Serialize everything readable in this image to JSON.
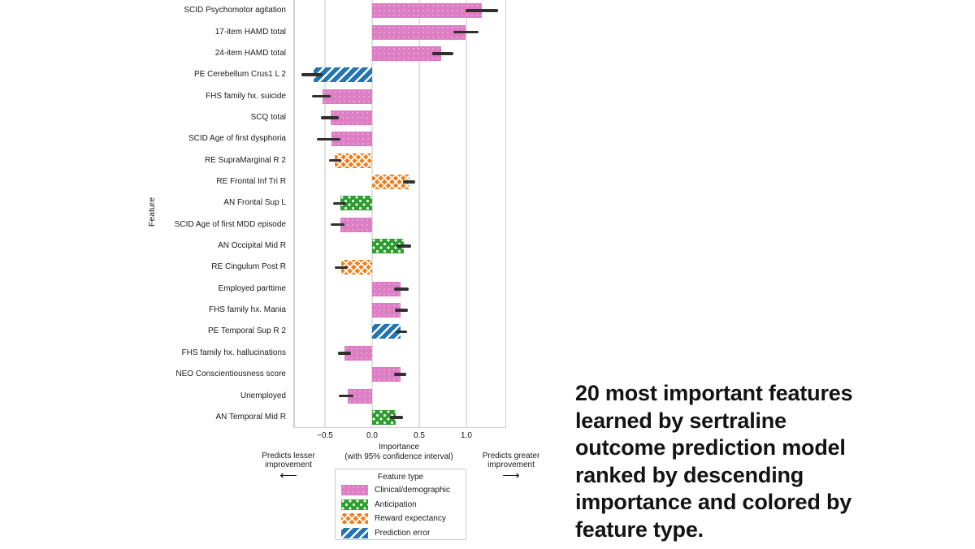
{
  "caption": {
    "lines": [
      "20 most important features",
      "learned by sertraline",
      "outcome prediction model",
      "ranked by descending",
      "importance and colored by",
      "feature type."
    ]
  },
  "chart_data": {
    "type": "bar",
    "orientation": "horizontal",
    "ylabel": "Feature",
    "xlabel_lines": [
      "Importance",
      "(with 95% confidence interval)"
    ],
    "xlim": [
      -0.84,
      1.42
    ],
    "grid": true,
    "x_ticks": [
      {
        "label": "−0.5",
        "value": -0.5
      },
      {
        "label": "0.0",
        "value": 0.0
      },
      {
        "label": "0.5",
        "value": 0.5
      },
      {
        "label": "1.0",
        "value": 1.0
      }
    ],
    "annotations": {
      "left": {
        "lines": [
          "Predicts lesser",
          "improvement"
        ],
        "arrow": "⟵"
      },
      "right": {
        "lines": [
          "Predicts greater",
          "improvement"
        ],
        "arrow": "⟶"
      }
    },
    "legend": {
      "title": "Feature type",
      "position": "below-axis",
      "items": [
        {
          "key": "clinical",
          "label": "Clinical/demographic",
          "color": "#dd7dc3",
          "hatch": "fine-dots"
        },
        {
          "key": "anticipation",
          "label": "Anticipation",
          "color": "#2e9e2e",
          "hatch": "white-dots"
        },
        {
          "key": "reward",
          "label": "Reward expectancy",
          "color": "#f07f1c",
          "hatch": "crosshatch"
        },
        {
          "key": "prediction",
          "label": "Prediction error",
          "color": "#2474b0",
          "hatch": "diagonal-stripes"
        }
      ]
    },
    "errorbar_color": "#303030",
    "bars": [
      {
        "label": "SCID Psychomotor agitation",
        "type": "clinical",
        "value": 1.16,
        "ci": [
          0.99,
          1.34
        ]
      },
      {
        "label": "17-item HAMD total",
        "type": "clinical",
        "value": 0.99,
        "ci": [
          0.86,
          1.13
        ]
      },
      {
        "label": "24-item HAMD total",
        "type": "clinical",
        "value": 0.73,
        "ci": [
          0.64,
          0.86
        ]
      },
      {
        "label": "PE Cerebellum Crus1 L 2",
        "type": "prediction",
        "value": -0.62,
        "ci": [
          -0.75,
          -0.53
        ]
      },
      {
        "label": "FHS family hx. suicide",
        "type": "clinical",
        "value": -0.53,
        "ci": [
          -0.64,
          -0.44
        ]
      },
      {
        "label": "SCQ total",
        "type": "clinical",
        "value": -0.44,
        "ci": [
          -0.54,
          -0.35
        ]
      },
      {
        "label": "SCID Age of first dysphoria",
        "type": "clinical",
        "value": -0.43,
        "ci": [
          -0.59,
          -0.34
        ]
      },
      {
        "label": "RE SupraMarginal R 2",
        "type": "reward",
        "value": -0.4,
        "ci": [
          -0.46,
          -0.33
        ]
      },
      {
        "label": "RE Frontal Inf Tri R",
        "type": "reward",
        "value": 0.4,
        "ci": [
          0.33,
          0.46
        ]
      },
      {
        "label": "AN Frontal Sup L",
        "type": "anticipation",
        "value": -0.34,
        "ci": [
          -0.41,
          -0.28
        ]
      },
      {
        "label": "SCID Age of first MDD episode",
        "type": "clinical",
        "value": -0.34,
        "ci": [
          -0.44,
          -0.29
        ]
      },
      {
        "label": "AN Occipital Mid R",
        "type": "anticipation",
        "value": 0.34,
        "ci": [
          0.26,
          0.41
        ]
      },
      {
        "label": "RE Cingulum Post R",
        "type": "reward",
        "value": -0.33,
        "ci": [
          -0.4,
          -0.26
        ]
      },
      {
        "label": "Employed parttime",
        "type": "clinical",
        "value": 0.3,
        "ci": [
          0.23,
          0.39
        ]
      },
      {
        "label": "FHS family hx. Mania",
        "type": "clinical",
        "value": 0.3,
        "ci": [
          0.24,
          0.38
        ]
      },
      {
        "label": "PE Temporal Sup R 2",
        "type": "prediction",
        "value": 0.3,
        "ci": [
          0.25,
          0.37
        ]
      },
      {
        "label": "FHS family hx. hallucinations",
        "type": "clinical",
        "value": -0.29,
        "ci": [
          -0.36,
          -0.22
        ]
      },
      {
        "label": "NEO Conscientiousness score",
        "type": "clinical",
        "value": 0.3,
        "ci": [
          0.23,
          0.36
        ]
      },
      {
        "label": "Unemployed",
        "type": "clinical",
        "value": -0.26,
        "ci": [
          -0.35,
          -0.2
        ]
      },
      {
        "label": "AN Temporal Mid R",
        "type": "anticipation",
        "value": 0.25,
        "ci": [
          0.19,
          0.33
        ]
      }
    ]
  }
}
